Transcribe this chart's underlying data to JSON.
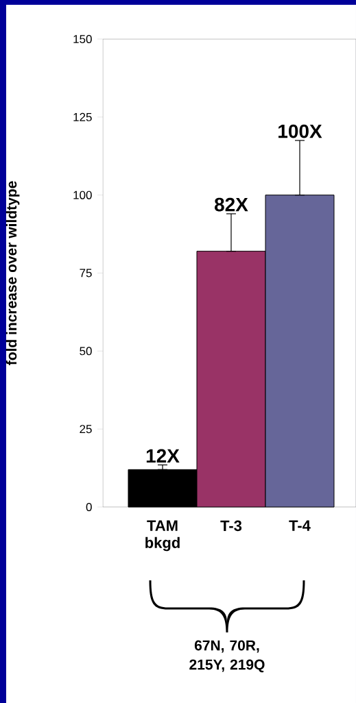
{
  "chart_data": {
    "type": "bar",
    "ylabel": "fold increase over wildtype",
    "categories": [
      "TAM bkgd",
      "T-3",
      "T-4"
    ],
    "values": [
      12,
      82,
      100
    ],
    "colors": [
      "#000000",
      "#993366",
      "#666699"
    ],
    "errors": [
      [
        12,
        13.5
      ],
      [
        82,
        94
      ],
      [
        100,
        117.5
      ]
    ],
    "value_labels": [
      "12X",
      "82X",
      "100X"
    ],
    "ylim": [
      0,
      150
    ],
    "yticks": [
      0,
      25,
      50,
      75,
      100,
      125,
      150
    ],
    "annotations": [
      "67N, 70R, 215Y, 219Q"
    ]
  }
}
